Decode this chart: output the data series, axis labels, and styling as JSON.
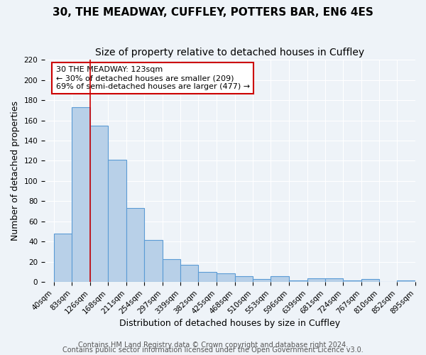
{
  "title": "30, THE MEADWAY, CUFFLEY, POTTERS BAR, EN6 4ES",
  "subtitle": "Size of property relative to detached houses in Cuffley",
  "xlabel": "Distribution of detached houses by size in Cuffley",
  "ylabel": "Number of detached properties",
  "tick_labels": [
    "40sqm",
    "83sqm",
    "126sqm",
    "168sqm",
    "211sqm",
    "254sqm",
    "297sqm",
    "339sqm",
    "382sqm",
    "425sqm",
    "468sqm",
    "510sqm",
    "553sqm",
    "596sqm",
    "639sqm",
    "681sqm",
    "724sqm",
    "767sqm",
    "810sqm",
    "852sqm",
    "895sqm"
  ],
  "bar_values": [
    48,
    173,
    155,
    121,
    73,
    42,
    23,
    17,
    10,
    9,
    6,
    3,
    6,
    2,
    4,
    4,
    2,
    3,
    0,
    2
  ],
  "bin_edges": [
    40,
    83,
    126,
    168,
    211,
    254,
    297,
    339,
    382,
    425,
    468,
    510,
    553,
    596,
    639,
    681,
    724,
    767,
    810,
    852,
    895
  ],
  "ylim": [
    0,
    220
  ],
  "yticks": [
    0,
    20,
    40,
    60,
    80,
    100,
    120,
    140,
    160,
    180,
    200,
    220
  ],
  "bar_color": "#b8d0e8",
  "bar_edge_color": "#5b9bd5",
  "background_color": "#eef3f8",
  "grid_color": "#ffffff",
  "vline_x": 126,
  "vline_color": "#cc0000",
  "annotation_text": "30 THE MEADWAY: 123sqm\n← 30% of detached houses are smaller (209)\n69% of semi-detached houses are larger (477) →",
  "annotation_box_color": "#ffffff",
  "annotation_box_edge": "#cc0000",
  "footer_line1": "Contains HM Land Registry data © Crown copyright and database right 2024.",
  "footer_line2": "Contains public sector information licensed under the Open Government Licence v3.0.",
  "title_fontsize": 11,
  "subtitle_fontsize": 10,
  "xlabel_fontsize": 9,
  "ylabel_fontsize": 9,
  "tick_fontsize": 7.5,
  "annotation_fontsize": 8,
  "footer_fontsize": 7
}
